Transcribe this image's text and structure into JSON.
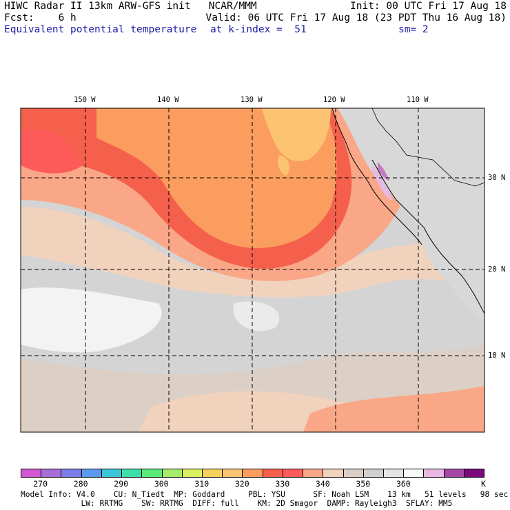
{
  "header": {
    "line1_left": "HIWC Radar II 13km ARW-GFS init   NCAR/MMM",
    "line1_right": "Init: 00 UTC Fri 17 Aug 18",
    "line2_left": "Fcst:    6 h",
    "line2_right": "Valid: 06 UTC Fri 17 Aug 18 (23 PDT Thu 16 Aug 18)",
    "field_name": "Equivalent potential temperature",
    "level": "at k-index =  51",
    "smoothing": "sm= 2"
  },
  "map": {
    "lon_labels": [
      "150 W",
      "140 W",
      "130 W",
      "120 W",
      "110 W"
    ],
    "lat_labels": [
      "30 N",
      "20 N",
      "10 N"
    ]
  },
  "colorbar": {
    "colors": [
      "#d356d3",
      "#a66ed6",
      "#7d7de9",
      "#5a9aef",
      "#3cc4d8",
      "#3ae0a8",
      "#5aeb7b",
      "#a6ec6a",
      "#dcf060",
      "#f4d25c",
      "#fcc472",
      "#fb9d5e",
      "#f5604c",
      "#fd5a5a",
      "#f9a787",
      "#f0d2bd",
      "#dccfc5",
      "#d0d0d0",
      "#e4e4e4",
      "#f8f8f8",
      "#e7b8e4",
      "#a848a6",
      "#7a0a7a"
    ],
    "tick_labels": [
      "270",
      "280",
      "290",
      "300",
      "310",
      "320",
      "330",
      "340",
      "350",
      "360"
    ],
    "units": "K"
  },
  "footer": {
    "line1": "Model Info: V4.0    CU: N_Tiedt  MP: Goddard     PBL: YSU      SF: Noah LSM    13 km   51 levels   98 sec",
    "line2": "             LW: RRTMG    SW: RRTMG  DIFF: full    KM: 2D Smagor  DAMP: Rayleigh3  SFLAY: MM5"
  }
}
